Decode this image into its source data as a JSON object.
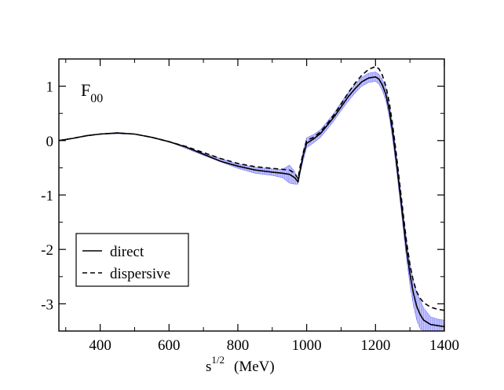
{
  "chart_data": {
    "type": "line",
    "panel_label": {
      "main": "F",
      "sub": "00"
    },
    "xlabel": {
      "main": "s",
      "sup": "1/2",
      "unit": "(MeV)"
    },
    "ylabel": "",
    "xlim": [
      280,
      1400
    ],
    "ylim": [
      -3.5,
      1.5
    ],
    "x_ticks": [
      400,
      600,
      800,
      1000,
      1200,
      1400
    ],
    "y_ticks": [
      1,
      0,
      -1,
      -2,
      -3
    ],
    "x_tick_labels": [
      "400",
      "600",
      "800",
      "1000",
      "1200",
      "1400"
    ],
    "y_tick_labels": [
      "1",
      "0",
      "-1",
      "-2",
      "-3"
    ],
    "legend": {
      "position": "lower-left",
      "entries": [
        "direct",
        "dispersive"
      ]
    },
    "band_color": "#3333ff",
    "series": [
      {
        "name": "direct",
        "style": "solid",
        "color": "#000000",
        "points": [
          [
            280,
            0.0
          ],
          [
            320,
            0.04
          ],
          [
            360,
            0.09
          ],
          [
            400,
            0.12
          ],
          [
            450,
            0.14
          ],
          [
            500,
            0.12
          ],
          [
            550,
            0.06
          ],
          [
            600,
            -0.02
          ],
          [
            650,
            -0.12
          ],
          [
            700,
            -0.25
          ],
          [
            750,
            -0.38
          ],
          [
            800,
            -0.47
          ],
          [
            850,
            -0.54
          ],
          [
            900,
            -0.58
          ],
          [
            930,
            -0.6
          ],
          [
            950,
            -0.62
          ],
          [
            965,
            -0.68
          ],
          [
            975,
            -0.76
          ],
          [
            980,
            -0.58
          ],
          [
            990,
            -0.27
          ],
          [
            1000,
            -0.05
          ],
          [
            1020,
            0.03
          ],
          [
            1040,
            0.13
          ],
          [
            1060,
            0.28
          ],
          [
            1080,
            0.44
          ],
          [
            1100,
            0.62
          ],
          [
            1120,
            0.8
          ],
          [
            1140,
            0.95
          ],
          [
            1160,
            1.08
          ],
          [
            1180,
            1.15
          ],
          [
            1200,
            1.17
          ],
          [
            1210,
            1.13
          ],
          [
            1220,
            1.02
          ],
          [
            1230,
            0.85
          ],
          [
            1240,
            0.55
          ],
          [
            1250,
            0.15
          ],
          [
            1260,
            -0.35
          ],
          [
            1270,
            -0.9
          ],
          [
            1280,
            -1.45
          ],
          [
            1290,
            -2.0
          ],
          [
            1300,
            -2.45
          ],
          [
            1310,
            -2.8
          ],
          [
            1320,
            -3.05
          ],
          [
            1330,
            -3.2
          ],
          [
            1340,
            -3.3
          ],
          [
            1360,
            -3.38
          ],
          [
            1380,
            -3.4
          ],
          [
            1400,
            -3.42
          ]
        ]
      },
      {
        "name": "dispersive",
        "style": "dashed",
        "color": "#000000",
        "points": [
          [
            280,
            0.0
          ],
          [
            320,
            0.04
          ],
          [
            360,
            0.09
          ],
          [
            400,
            0.12
          ],
          [
            450,
            0.14
          ],
          [
            500,
            0.12
          ],
          [
            550,
            0.06
          ],
          [
            600,
            -0.02
          ],
          [
            650,
            -0.11
          ],
          [
            700,
            -0.22
          ],
          [
            750,
            -0.33
          ],
          [
            800,
            -0.42
          ],
          [
            850,
            -0.48
          ],
          [
            900,
            -0.51
          ],
          [
            950,
            -0.54
          ],
          [
            965,
            -0.6
          ],
          [
            975,
            -0.7
          ],
          [
            980,
            -0.5
          ],
          [
            990,
            -0.22
          ],
          [
            1000,
            0.0
          ],
          [
            1020,
            0.06
          ],
          [
            1040,
            0.16
          ],
          [
            1060,
            0.31
          ],
          [
            1080,
            0.48
          ],
          [
            1100,
            0.67
          ],
          [
            1120,
            0.87
          ],
          [
            1140,
            1.05
          ],
          [
            1160,
            1.2
          ],
          [
            1180,
            1.31
          ],
          [
            1200,
            1.36
          ],
          [
            1210,
            1.32
          ],
          [
            1220,
            1.2
          ],
          [
            1230,
            1.0
          ],
          [
            1240,
            0.7
          ],
          [
            1250,
            0.28
          ],
          [
            1260,
            -0.22
          ],
          [
            1270,
            -0.77
          ],
          [
            1280,
            -1.32
          ],
          [
            1290,
            -1.85
          ],
          [
            1300,
            -2.28
          ],
          [
            1310,
            -2.58
          ],
          [
            1320,
            -2.78
          ],
          [
            1330,
            -2.9
          ],
          [
            1340,
            -2.98
          ],
          [
            1360,
            -3.06
          ],
          [
            1380,
            -3.1
          ],
          [
            1400,
            -3.12
          ]
        ]
      }
    ],
    "uncertainty_band": {
      "name": "direct error band",
      "points": [
        [
          280,
          0.0,
          0.0
        ],
        [
          400,
          0.12,
          0.12
        ],
        [
          500,
          0.12,
          0.12
        ],
        [
          600,
          -0.02,
          -0.02
        ],
        [
          700,
          -0.27,
          -0.23
        ],
        [
          800,
          -0.51,
          -0.43
        ],
        [
          850,
          -0.6,
          -0.49
        ],
        [
          900,
          -0.64,
          -0.52
        ],
        [
          930,
          -0.68,
          -0.53
        ],
        [
          950,
          -0.78,
          -0.45
        ],
        [
          965,
          -0.8,
          -0.57
        ],
        [
          975,
          -0.8,
          -0.72
        ],
        [
          980,
          -0.63,
          -0.53
        ],
        [
          990,
          -0.36,
          -0.18
        ],
        [
          1000,
          -0.13,
          0.05
        ],
        [
          1020,
          -0.04,
          0.11
        ],
        [
          1040,
          0.06,
          0.2
        ],
        [
          1060,
          0.21,
          0.35
        ],
        [
          1080,
          0.37,
          0.51
        ],
        [
          1100,
          0.55,
          0.7
        ],
        [
          1120,
          0.72,
          0.88
        ],
        [
          1140,
          0.87,
          1.03
        ],
        [
          1160,
          1.0,
          1.16
        ],
        [
          1180,
          1.07,
          1.24
        ],
        [
          1200,
          1.09,
          1.26
        ],
        [
          1210,
          1.04,
          1.22
        ],
        [
          1220,
          0.92,
          1.12
        ],
        [
          1230,
          0.74,
          0.96
        ],
        [
          1240,
          0.43,
          0.67
        ],
        [
          1250,
          0.02,
          0.28
        ],
        [
          1260,
          -0.48,
          -0.22
        ],
        [
          1270,
          -1.03,
          -0.77
        ],
        [
          1280,
          -1.6,
          -1.3
        ],
        [
          1290,
          -2.17,
          -1.83
        ],
        [
          1300,
          -2.65,
          -2.25
        ],
        [
          1310,
          -3.02,
          -2.58
        ],
        [
          1320,
          -3.3,
          -2.8
        ],
        [
          1330,
          -3.46,
          -2.94
        ],
        [
          1340,
          -3.5,
          -3.08
        ],
        [
          1360,
          -3.5,
          -3.24
        ],
        [
          1380,
          -3.5,
          -3.28
        ],
        [
          1400,
          -3.5,
          -3.3
        ]
      ]
    }
  }
}
